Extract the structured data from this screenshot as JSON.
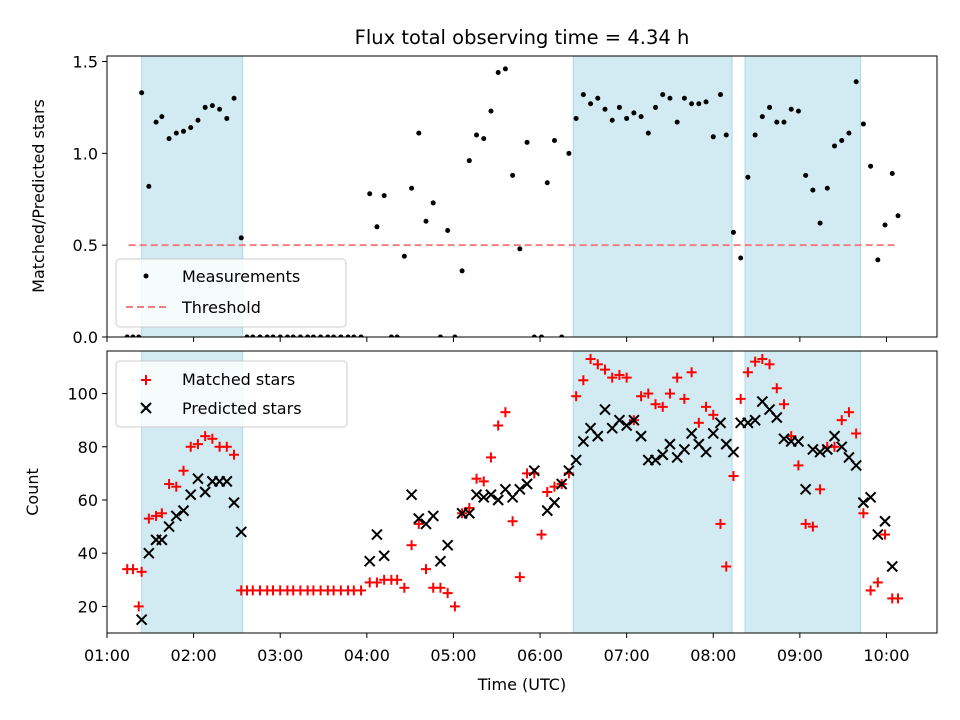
{
  "chart_data": [
    {
      "type": "scatter",
      "title": "Flux total observing time = 4.34 h",
      "xlabel": "",
      "ylabel": "Matched/Predicted stars",
      "xlim": [
        "01:00",
        "10:35"
      ],
      "ylim": [
        0,
        1.53
      ],
      "yticks": [
        "0.0",
        "0.5",
        "1.0",
        "1.5"
      ],
      "xticks": [
        "01:00",
        "02:00",
        "03:00",
        "04:00",
        "05:00",
        "06:00",
        "07:00",
        "08:00",
        "09:00",
        "10:00"
      ],
      "shaded_intervals": [
        [
          "01:24",
          "02:34"
        ],
        [
          "06:23",
          "08:13"
        ],
        [
          "08:22",
          "09:42"
        ]
      ],
      "threshold": {
        "name": "Threshold",
        "value": 0.5,
        "x_range": [
          "01:15",
          "10:08"
        ],
        "color": "#f08080"
      },
      "series": [
        {
          "name": "Measurements",
          "color": "#000000",
          "x": [
            "01:14",
            "01:18",
            "01:22",
            "01:24",
            "01:29",
            "01:34",
            "01:38",
            "01:43",
            "01:48",
            "01:53",
            "01:58",
            "02:03",
            "02:08",
            "02:13",
            "02:18",
            "02:23",
            "02:28",
            "02:33",
            "02:37",
            "02:41",
            "02:46",
            "02:51",
            "02:55",
            "03:00",
            "03:05",
            "03:09",
            "03:14",
            "03:19",
            "03:23",
            "03:28",
            "03:33",
            "03:37",
            "03:42",
            "03:47",
            "03:51",
            "03:56",
            "04:02",
            "04:07",
            "04:12",
            "04:17",
            "04:21",
            "04:26",
            "04:31",
            "04:36",
            "04:41",
            "04:46",
            "04:51",
            "04:56",
            "05:01",
            "05:06",
            "05:11",
            "05:16",
            "05:21",
            "05:26",
            "05:31",
            "05:36",
            "05:41",
            "05:46",
            "05:51",
            "05:56",
            "06:01",
            "06:05",
            "06:10",
            "06:15",
            "06:20",
            "06:25",
            "06:30",
            "06:35",
            "06:40",
            "06:45",
            "06:50",
            "06:55",
            "07:00",
            "07:05",
            "07:10",
            "07:15",
            "07:20",
            "07:25",
            "07:30",
            "07:35",
            "07:40",
            "07:45",
            "07:50",
            "07:55",
            "08:00",
            "08:05",
            "08:09",
            "08:14",
            "08:19",
            "08:24",
            "08:29",
            "08:34",
            "08:39",
            "08:44",
            "08:49",
            "08:54",
            "08:59",
            "09:04",
            "09:09",
            "09:14",
            "09:19",
            "09:24",
            "09:29",
            "09:34",
            "09:39",
            "09:44",
            "09:49",
            "09:54",
            "09:59",
            "10:04",
            "10:08"
          ],
          "y": [
            0,
            0,
            0,
            1.33,
            0.82,
            1.17,
            1.2,
            1.08,
            1.11,
            1.12,
            1.14,
            1.18,
            1.25,
            1.26,
            1.24,
            1.19,
            1.3,
            0.54,
            0,
            0,
            0,
            0,
            0,
            0,
            0,
            0,
            0,
            0,
            0,
            0,
            0,
            0,
            0,
            0,
            0,
            0,
            0.78,
            0.6,
            0.77,
            0,
            0,
            0.44,
            0.81,
            1.11,
            0.63,
            0.73,
            0,
            0.58,
            0,
            0.36,
            0.96,
            1.1,
            1.08,
            1.23,
            1.44,
            1.46,
            0.88,
            0.48,
            1.06,
            0,
            0,
            0.84,
            1.07,
            0,
            1.0,
            1.19,
            1.32,
            1.27,
            1.3,
            1.24,
            1.18,
            1.25,
            1.19,
            1.22,
            1.2,
            1.11,
            1.25,
            1.32,
            1.3,
            1.17,
            1.3,
            1.27,
            1.27,
            1.28,
            1.09,
            1.32,
            1.1,
            0.57,
            0.43,
            0.87,
            1.1,
            1.2,
            1.25,
            1.17,
            1.17,
            1.24,
            1.23,
            0.88,
            0.8,
            0.62,
            0.81,
            1.04,
            1.07,
            1.11,
            1.39,
            1.16,
            0.93,
            0.42,
            0.61,
            0.89,
            0.66
          ]
        }
      ],
      "legend": {
        "placement": "lower-left",
        "entries": [
          "Measurements",
          "Threshold"
        ]
      }
    },
    {
      "type": "scatter",
      "title": "",
      "xlabel": "Time (UTC)",
      "ylabel": "Count",
      "xlim": [
        "01:00",
        "10:35"
      ],
      "ylim": [
        10,
        116
      ],
      "yticks": [
        "20",
        "40",
        "60",
        "80",
        "100"
      ],
      "xticks": [
        "01:00",
        "02:00",
        "03:00",
        "04:00",
        "05:00",
        "06:00",
        "07:00",
        "08:00",
        "09:00",
        "10:00"
      ],
      "shaded_intervals": [
        [
          "01:24",
          "02:34"
        ],
        [
          "06:23",
          "08:13"
        ],
        [
          "08:22",
          "09:42"
        ]
      ],
      "series": [
        {
          "name": "Matched stars",
          "color": "#ff0000",
          "marker": "plus",
          "x": [
            "01:14",
            "01:18",
            "01:22",
            "01:24",
            "01:29",
            "01:34",
            "01:38",
            "01:43",
            "01:48",
            "01:53",
            "01:58",
            "02:03",
            "02:08",
            "02:13",
            "02:18",
            "02:23",
            "02:28",
            "02:33",
            "02:37",
            "02:41",
            "02:46",
            "02:51",
            "02:55",
            "03:00",
            "03:05",
            "03:09",
            "03:14",
            "03:19",
            "03:23",
            "03:28",
            "03:33",
            "03:37",
            "03:42",
            "03:47",
            "03:51",
            "03:56",
            "04:02",
            "04:07",
            "04:12",
            "04:17",
            "04:21",
            "04:26",
            "04:31",
            "04:36",
            "04:41",
            "04:46",
            "04:51",
            "04:56",
            "05:01",
            "05:06",
            "05:11",
            "05:16",
            "05:21",
            "05:26",
            "05:31",
            "05:36",
            "05:41",
            "05:46",
            "05:51",
            "05:56",
            "06:01",
            "06:05",
            "06:10",
            "06:15",
            "06:20",
            "06:25",
            "06:30",
            "06:35",
            "06:40",
            "06:45",
            "06:50",
            "06:55",
            "07:00",
            "07:05",
            "07:10",
            "07:15",
            "07:20",
            "07:25",
            "07:30",
            "07:35",
            "07:40",
            "07:45",
            "07:50",
            "07:55",
            "08:00",
            "08:05",
            "08:09",
            "08:14",
            "08:19",
            "08:24",
            "08:29",
            "08:34",
            "08:39",
            "08:44",
            "08:49",
            "08:54",
            "08:59",
            "09:04",
            "09:09",
            "09:14",
            "09:19",
            "09:24",
            "09:29",
            "09:34",
            "09:39",
            "09:44",
            "09:49",
            "09:54",
            "09:59",
            "10:04",
            "10:08"
          ],
          "y": [
            34,
            34,
            20,
            33,
            53,
            54,
            55,
            66,
            65,
            71,
            80,
            81,
            84,
            83,
            80,
            80,
            77,
            26,
            26,
            26,
            26,
            26,
            26,
            26,
            26,
            26,
            26,
            26,
            26,
            26,
            26,
            26,
            26,
            26,
            26,
            26,
            29,
            29,
            30,
            30,
            30,
            27,
            43,
            51,
            34,
            27,
            27,
            25,
            20,
            55,
            57,
            68,
            67,
            76,
            88,
            93,
            52,
            31,
            70,
            70,
            47,
            63,
            65,
            66,
            70,
            99,
            105,
            113,
            111,
            109,
            106,
            107,
            106,
            90,
            99,
            100,
            96,
            95,
            100,
            106,
            98,
            108,
            89,
            95,
            92,
            51,
            35,
            69,
            98,
            108,
            112,
            113,
            111,
            102,
            96,
            84,
            73,
            51,
            50,
            64,
            80,
            80,
            90,
            93,
            85,
            55,
            26,
            29,
            47,
            23,
            23
          ]
        },
        {
          "name": "Predicted stars",
          "color": "#000000",
          "marker": "x",
          "x": [
            "01:24",
            "01:29",
            "01:34",
            "01:38",
            "01:43",
            "01:48",
            "01:53",
            "01:58",
            "02:03",
            "02:08",
            "02:13",
            "02:18",
            "02:23",
            "02:28",
            "02:33",
            "04:02",
            "04:07",
            "04:12",
            "04:31",
            "04:36",
            "04:41",
            "04:46",
            "04:51",
            "04:56",
            "05:06",
            "05:11",
            "05:16",
            "05:21",
            "05:26",
            "05:31",
            "05:36",
            "05:41",
            "05:46",
            "05:51",
            "05:56",
            "06:05",
            "06:10",
            "06:15",
            "06:20",
            "06:25",
            "06:30",
            "06:35",
            "06:40",
            "06:45",
            "06:50",
            "06:55",
            "07:00",
            "07:05",
            "07:10",
            "07:15",
            "07:20",
            "07:25",
            "07:30",
            "07:35",
            "07:40",
            "07:45",
            "07:50",
            "07:55",
            "08:00",
            "08:05",
            "08:09",
            "08:14",
            "08:19",
            "08:24",
            "08:29",
            "08:34",
            "08:39",
            "08:44",
            "08:49",
            "08:54",
            "08:59",
            "09:04",
            "09:09",
            "09:14",
            "09:19",
            "09:24",
            "09:29",
            "09:34",
            "09:39",
            "09:44",
            "09:49",
            "09:54",
            "09:59",
            "10:04"
          ],
          "y": [
            15,
            40,
            45,
            45,
            50,
            54,
            56,
            62,
            68,
            63,
            67,
            67,
            67,
            59,
            48,
            37,
            47,
            39,
            62,
            53,
            51,
            54,
            37,
            43,
            55,
            55,
            62,
            61,
            62,
            60,
            64,
            61,
            64,
            66,
            71,
            56,
            59,
            66,
            71,
            75,
            82,
            87,
            84,
            94,
            87,
            90,
            88,
            90,
            84,
            75,
            75,
            77,
            81,
            76,
            79,
            85,
            81,
            78,
            85,
            89,
            81,
            78,
            89,
            89,
            90,
            97,
            94,
            91,
            83,
            82,
            82,
            64,
            79,
            78,
            79,
            84,
            80,
            76,
            73,
            59,
            61,
            47,
            52,
            35
          ]
        }
      ],
      "legend": {
        "placement": "top-left",
        "entries": [
          "Matched stars",
          "Predicted stars"
        ]
      }
    }
  ]
}
